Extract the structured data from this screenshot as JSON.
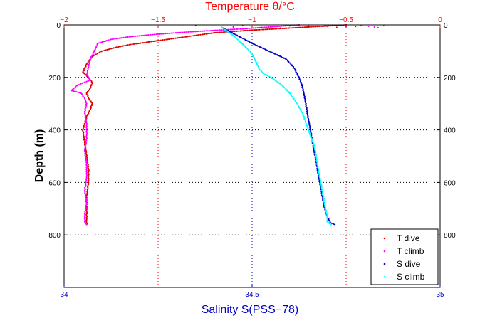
{
  "chart_data": {
    "type": "scatter",
    "title": "Temperature θ/°C",
    "xlabel": "Salinity S(PSS−78)",
    "ylabel": "Depth (m)",
    "colors": {
      "top_axis": "#ff0000",
      "bottom_axis": "#0000c8",
      "grid_temp": "#ff0000",
      "grid_sal": "#0000c8"
    },
    "temperature_axis": {
      "lim": [
        -2,
        0
      ],
      "ticks": [
        -2,
        -1.5,
        -1,
        -0.5,
        0
      ],
      "tick_labels": [
        "−2",
        "−1.5",
        "−1",
        "−0.5",
        "0"
      ]
    },
    "salinity_axis": {
      "lim": [
        34,
        35
      ],
      "ticks": [
        34,
        34.5,
        35
      ],
      "tick_labels": [
        "34",
        "34.5",
        "35"
      ]
    },
    "depth_axis": {
      "lim": [
        0,
        1000
      ],
      "reversed": true,
      "ticks": [
        0,
        200,
        400,
        600,
        800
      ],
      "tick_labels": [
        "0",
        "200",
        "400",
        "600",
        "800"
      ]
    },
    "legend_position": "bottom-right",
    "series": [
      {
        "name": "T dive",
        "axis": "temperature",
        "color": "#dd0000",
        "x": [
          -0.5,
          -0.75,
          -1.0,
          -1.2,
          -1.35,
          -1.45,
          -1.55,
          -1.65,
          -1.72,
          -1.8,
          -1.85,
          -1.88,
          -1.9,
          -1.87,
          -1.85,
          -1.86,
          -1.88,
          -1.87,
          -1.85,
          -1.86,
          -1.88,
          -1.9,
          -1.89,
          -1.88,
          -1.87,
          -1.87,
          -1.88,
          -1.88,
          -1.88,
          -1.88
        ],
        "y": [
          0,
          10,
          20,
          30,
          45,
          55,
          65,
          75,
          85,
          100,
          120,
          150,
          180,
          200,
          220,
          240,
          260,
          280,
          300,
          320,
          350,
          400,
          450,
          500,
          550,
          600,
          650,
          700,
          740,
          760
        ]
      },
      {
        "name": "T climb",
        "axis": "temperature",
        "color": "#ff00ff",
        "x": [
          -0.75,
          -1.05,
          -1.3,
          -1.5,
          -1.65,
          -1.75,
          -1.82,
          -1.84,
          -1.86,
          -1.87,
          -1.88,
          -1.86,
          -1.93,
          -1.96,
          -1.91,
          -1.89,
          -1.88,
          -1.89,
          -1.88,
          -1.88,
          -1.89,
          -1.88,
          -1.88,
          -1.89,
          -1.88,
          -1.89,
          -1.89,
          -1.88
        ],
        "y": [
          0,
          15,
          25,
          35,
          45,
          55,
          70,
          100,
          130,
          160,
          190,
          210,
          230,
          250,
          260,
          280,
          300,
          330,
          380,
          430,
          480,
          530,
          580,
          630,
          680,
          720,
          750,
          760
        ]
      },
      {
        "name": "S dive",
        "axis": "salinity",
        "color": "#0000c8",
        "x": [
          34.42,
          34.46,
          34.5,
          34.53,
          34.56,
          34.59,
          34.61,
          34.625,
          34.635,
          34.64,
          34.645,
          34.65,
          34.655,
          34.66,
          34.665,
          34.67,
          34.675,
          34.68,
          34.685,
          34.69,
          34.695,
          34.7,
          34.705,
          34.71,
          34.72
        ],
        "y": [
          10,
          40,
          70,
          90,
          110,
          130,
          160,
          200,
          240,
          280,
          320,
          360,
          400,
          440,
          480,
          520,
          560,
          600,
          640,
          680,
          710,
          730,
          745,
          755,
          760
        ]
      },
      {
        "name": "S climb",
        "axis": "salinity",
        "color": "#00ffff",
        "x": [
          34.42,
          34.45,
          34.48,
          34.5,
          34.51,
          34.52,
          34.53,
          34.55,
          34.58,
          34.6,
          34.62,
          34.635,
          34.645,
          34.655,
          34.665,
          34.67,
          34.675,
          34.68,
          34.685,
          34.69,
          34.695,
          34.7,
          34.7,
          34.71
        ],
        "y": [
          10,
          40,
          80,
          110,
          140,
          170,
          185,
          200,
          230,
          260,
          300,
          340,
          380,
          420,
          460,
          500,
          540,
          580,
          620,
          660,
          700,
          730,
          750,
          760
        ]
      },
      {
        "name": "T dive",
        "axis": "temperature",
        "color": "#dd0000",
        "scatter_only": true,
        "x": [
          -1.3,
          -1.1,
          -0.9,
          -0.85,
          -0.8,
          -0.7,
          -0.65,
          -0.55,
          -0.45,
          -1.15,
          -1.05,
          -0.95
        ],
        "y": [
          3,
          8,
          5,
          12,
          2,
          7,
          4,
          9,
          6,
          15,
          3,
          10
        ]
      },
      {
        "name": "T climb",
        "axis": "temperature",
        "color": "#ff00ff",
        "scatter_only": true,
        "x": [
          -0.42,
          -0.38,
          -0.35,
          -0.3,
          -0.6,
          -0.8,
          -0.9,
          -0.7,
          -0.5,
          -0.33
        ],
        "y": [
          2,
          5,
          8,
          3,
          6,
          4,
          9,
          2,
          7,
          10
        ]
      }
    ]
  }
}
